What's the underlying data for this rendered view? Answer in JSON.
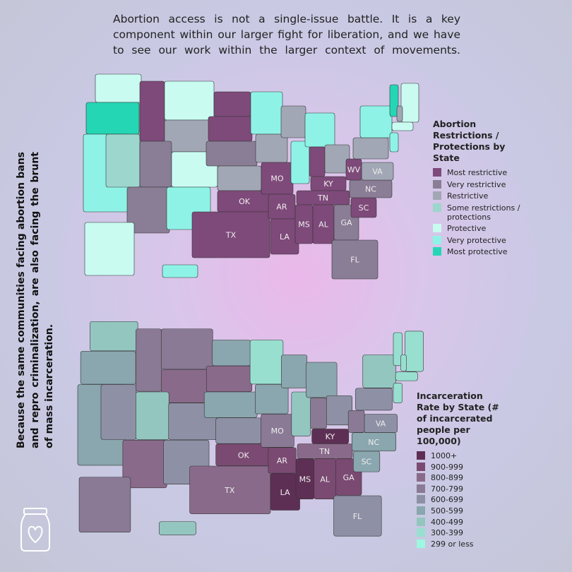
{
  "intro": "Abortion access is not a single-issue battle. It is a key component within our larger fight for liberation, and we have to see our work within the larger context of movements.",
  "side_text": "Because the same communities facing abortion bans and repro criminalization, are also facing the brunt of mass incarceration.",
  "maps": [
    {
      "legend_title": "Abortion Restrictions / Protections by State",
      "legend": [
        {
          "label": "Most restrictive",
          "color": "#7e4a7a"
        },
        {
          "label": "Very restrictive",
          "color": "#8a7d96"
        },
        {
          "label": "Restrictive",
          "color": "#a2a7b5"
        },
        {
          "label": "Some restrictions / protections",
          "color": "#9dd6cc"
        },
        {
          "label": "Protective",
          "color": "#c9fbf1"
        },
        {
          "label": "Very protective",
          "color": "#8ef3e6"
        },
        {
          "label": "Most protective",
          "color": "#25d6b5"
        }
      ],
      "states": [
        {
          "level": 4
        },
        {
          "level": 6
        },
        {
          "level": 5
        },
        {
          "level": 3
        },
        {
          "level": 0
        },
        {
          "level": 4
        },
        {
          "level": 2
        },
        {
          "level": 1
        },
        {
          "level": 4
        },
        {
          "level": 1
        },
        {
          "level": 5
        },
        {
          "level": 0
        },
        {
          "level": 0
        },
        {
          "level": 1
        },
        {
          "level": 2
        },
        {
          "level": 0,
          "label": "OK"
        },
        {
          "level": 0,
          "label": "TX"
        },
        {
          "level": 5
        },
        {
          "level": 2
        },
        {
          "level": 0,
          "label": "MO"
        },
        {
          "level": 0,
          "label": "AR"
        },
        {
          "level": 0,
          "label": "LA"
        },
        {
          "level": 2
        },
        {
          "level": 5
        },
        {
          "level": 5
        },
        {
          "level": 0
        },
        {
          "level": 2
        },
        {
          "level": 0,
          "label": "KY"
        },
        {
          "level": 0,
          "label": "TN"
        },
        {
          "level": 0,
          "label": "MS"
        },
        {
          "level": 0,
          "label": "AL"
        },
        {
          "level": 1,
          "label": "GA"
        },
        {
          "level": 1,
          "label": "FL"
        },
        {
          "level": 0,
          "label": "SC"
        },
        {
          "level": 1,
          "label": "NC"
        },
        {
          "level": 2,
          "label": "VA"
        },
        {
          "level": 0,
          "label": "WV"
        },
        {
          "level": 2
        },
        {
          "level": 5
        },
        {
          "level": 4
        },
        {
          "level": 6
        },
        {
          "level": 2
        },
        {
          "level": 4
        },
        {
          "level": 5
        },
        {
          "level": 4
        },
        {
          "level": 5
        }
      ]
    },
    {
      "legend_title": "Incarceration Rate by State (# of incarcerated people per 100,000)",
      "legend": [
        {
          "label": "1000+",
          "color": "#5e2f55"
        },
        {
          "label": "900-999",
          "color": "#7a4a72"
        },
        {
          "label": "800-899",
          "color": "#8a6a8a"
        },
        {
          "label": "700-799",
          "color": "#8a7a95"
        },
        {
          "label": "600-699",
          "color": "#8e91a5"
        },
        {
          "label": "500-599",
          "color": "#8aa6ae"
        },
        {
          "label": "400-499",
          "color": "#94c6c0"
        },
        {
          "label": "300-399",
          "color": "#98dfd0"
        },
        {
          "label": "299 or less",
          "color": "#9ef7e0"
        }
      ],
      "states": [
        {
          "level": 6
        },
        {
          "level": 5
        },
        {
          "level": 5
        },
        {
          "level": 4
        },
        {
          "level": 3
        },
        {
          "level": 3
        },
        {
          "level": 2
        },
        {
          "level": 6
        },
        {
          "level": 4
        },
        {
          "level": 2
        },
        {
          "level": 4
        },
        {
          "level": 5
        },
        {
          "level": 2
        },
        {
          "level": 5
        },
        {
          "level": 4
        },
        {
          "level": 1,
          "label": "OK"
        },
        {
          "level": 2,
          "label": "TX"
        },
        {
          "level": 7
        },
        {
          "level": 5
        },
        {
          "level": 3,
          "label": "MO"
        },
        {
          "level": 1,
          "label": "AR"
        },
        {
          "level": 0,
          "label": "LA"
        },
        {
          "level": 5
        },
        {
          "level": 6
        },
        {
          "level": 5
        },
        {
          "level": 3
        },
        {
          "level": 4
        },
        {
          "level": 0,
          "label": "KY"
        },
        {
          "level": 2,
          "label": "TN"
        },
        {
          "level": 0,
          "label": "MS"
        },
        {
          "level": 1,
          "label": "AL"
        },
        {
          "level": 1,
          "label": "GA"
        },
        {
          "level": 4,
          "label": "FL"
        },
        {
          "level": 5,
          "label": "SC"
        },
        {
          "level": 5,
          "label": "NC"
        },
        {
          "level": 4,
          "label": "VA"
        },
        {
          "level": 3
        },
        {
          "level": 4
        },
        {
          "level": 6
        },
        {
          "level": 7
        },
        {
          "level": 7
        },
        {
          "level": 7
        },
        {
          "level": 7
        },
        {
          "level": 7
        },
        {
          "level": 3
        },
        {
          "level": 6
        }
      ]
    }
  ]
}
